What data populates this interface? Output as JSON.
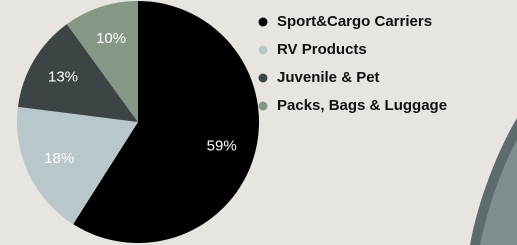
{
  "chart_data": {
    "type": "pie",
    "categories": [
      "Sport&Cargo Carriers",
      "RV Products",
      "Juvenile & Pet",
      "Packs, Bags & Luggage"
    ],
    "values": [
      59,
      18,
      13,
      10
    ],
    "value_labels": [
      "59%",
      "18%",
      "13%",
      "10%"
    ],
    "colors": [
      "#000000",
      "#b9c7ca",
      "#3d4446",
      "#879786"
    ]
  }
}
